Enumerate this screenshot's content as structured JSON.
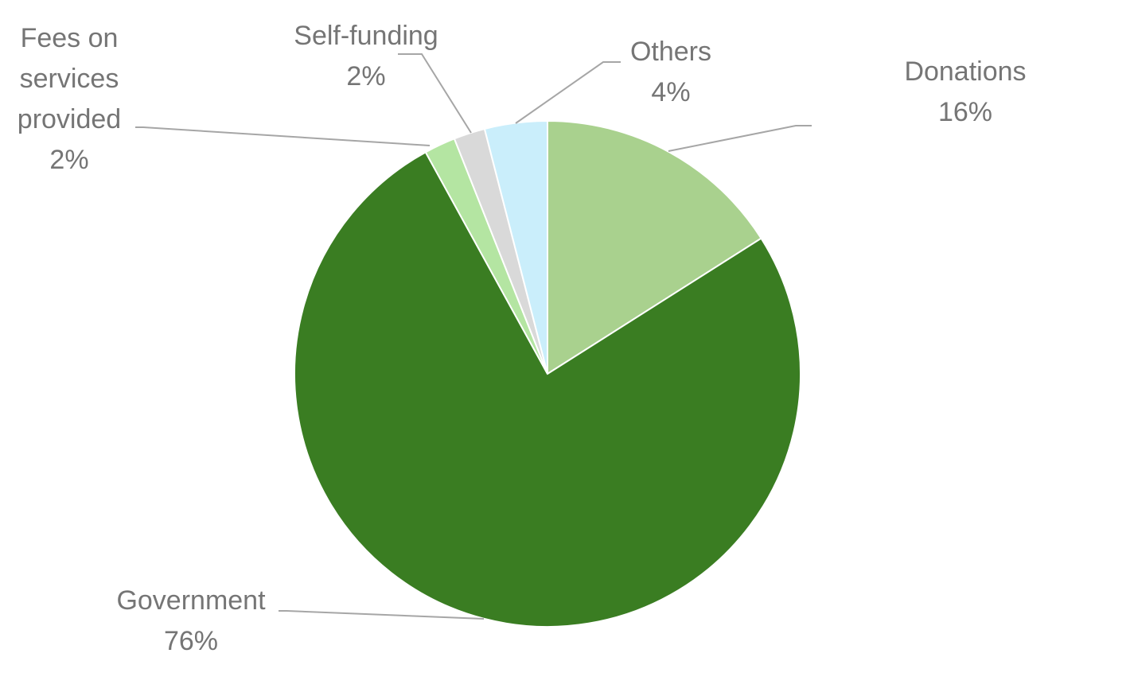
{
  "chart_data": {
    "type": "pie",
    "categories": [
      "Donations",
      "Government",
      "Fees on services provided",
      "Self-funding",
      "Others"
    ],
    "values": [
      16,
      76,
      2,
      2,
      4
    ],
    "value_labels": [
      "16%",
      "76%",
      "2%",
      "2%",
      "4%"
    ],
    "colors": [
      "#a9d18e",
      "#3a7d22",
      "#b4e5a2",
      "#d9d9d9",
      "#caeefb"
    ]
  }
}
